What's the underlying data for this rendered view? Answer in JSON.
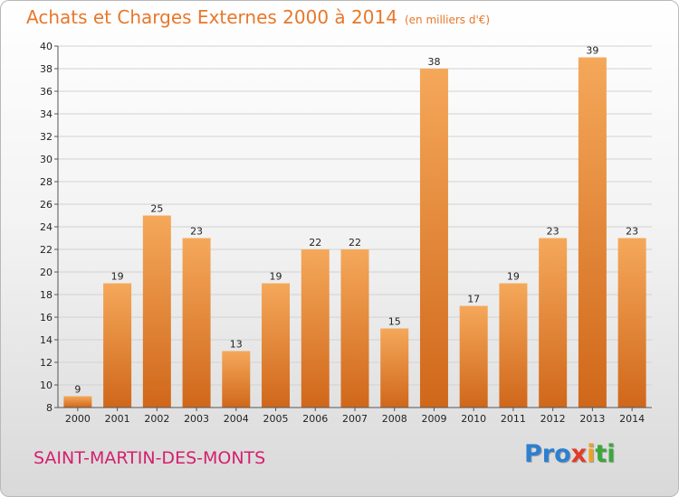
{
  "title": "Achats et Charges Externes 2000 à 2014",
  "subtitle": "(en milliers d'€)",
  "city": "SAINT-MARTIN-DES-MONTS",
  "logo": {
    "p1": "Pro",
    "p2": "x",
    "p3": "i",
    "p4": "ti"
  },
  "colors": {
    "bar_top": "#f5a85a",
    "bar_bottom": "#d0671a",
    "title": "#e8772a",
    "city": "#d4206e"
  },
  "chart_data": {
    "type": "bar",
    "title": "Achats et Charges Externes 2000 à 2014",
    "subtitle": "(en milliers d'€)",
    "xlabel": "",
    "ylabel": "",
    "ylim": [
      8,
      40
    ],
    "yticks": [
      8,
      10,
      12,
      14,
      16,
      18,
      20,
      22,
      24,
      26,
      28,
      30,
      32,
      34,
      36,
      38,
      40
    ],
    "grid": true,
    "categories": [
      "2000",
      "2001",
      "2002",
      "2003",
      "2004",
      "2005",
      "2006",
      "2007",
      "2008",
      "2009",
      "2010",
      "2011",
      "2012",
      "2013",
      "2014"
    ],
    "values": [
      9,
      19,
      25,
      23,
      13,
      19,
      22,
      22,
      15,
      38,
      17,
      19,
      23,
      39,
      23
    ]
  }
}
